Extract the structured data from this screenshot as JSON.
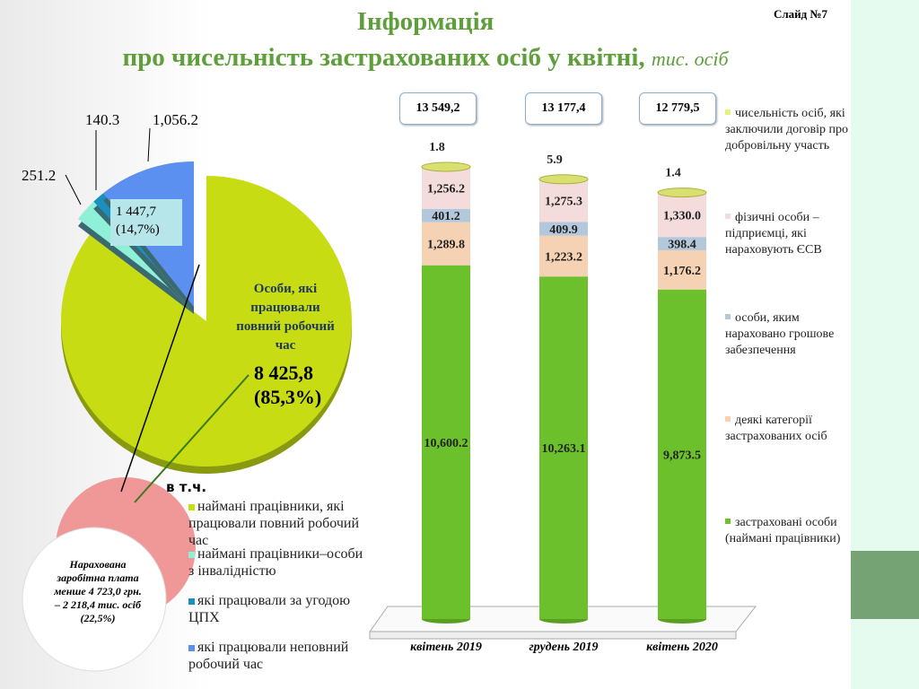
{
  "header": {
    "title": "Інформація",
    "subtitle": "про чисельність застрахованих осіб у квітні,",
    "unit": "тис. осіб",
    "slide": "Слайд №7"
  },
  "pie": {
    "main_label": "Особи, які працювали повний робочий час",
    "main_value": "8 425,8",
    "main_pct": "(85,3%)",
    "group_value": "1 447,7",
    "group_pct": "(14,7%)",
    "slices": [
      {
        "name": "найманi працівники, які працювали повний робочий час",
        "value": 8425.8,
        "color": "#c8dc14"
      },
      {
        "name": "наймані працівники–особи з інвалідністю",
        "value": 251.2,
        "label": "251.2",
        "color": "#8ff0d8"
      },
      {
        "name": "які працювали за угодою ЦПХ",
        "value": 140.3,
        "label": "140.3",
        "color": "#1a90c0"
      },
      {
        "name": "які працювали неповний робочий час",
        "value": 1056.2,
        "label": "1,056.2",
        "color": "#5b8ff0"
      }
    ],
    "in_that": "в т.ч.",
    "note": "Нарахована заробітна плата менше 4 723,0 грн. – 2 218,4 тис. осіб (22,5%)"
  },
  "chart_data": {
    "type": "bar",
    "stacked": true,
    "categories": [
      "квітень 2019",
      "грудень 2019",
      "квітень 2020"
    ],
    "totals": [
      "13 549,2",
      "13 177,4",
      "12 779,5"
    ],
    "series": [
      {
        "name": "застраховані особи (наймані працівники)",
        "values": [
          10600.2,
          10263.1,
          9873.5
        ],
        "labels": [
          "10,600.2",
          "10,263.1",
          "9,873.5"
        ],
        "color": "#6cc02c"
      },
      {
        "name": "деякі категорії застрахованих осіб",
        "values": [
          1289.8,
          1223.2,
          1176.2
        ],
        "labels": [
          "1,289.8",
          "1,223.2",
          "1,176.2"
        ],
        "color": "#f6d2b4"
      },
      {
        "name": "особи, яким нараховано грошове забезпечення",
        "values": [
          401.2,
          409.9,
          398.4
        ],
        "labels": [
          "401.2",
          "409.9",
          "398.4"
        ],
        "color": "#b4c8dc"
      },
      {
        "name": "фізичні особи – підприємці, які нараховують ЄСВ",
        "values": [
          1256.2,
          1275.3,
          1330.0
        ],
        "labels": [
          "1,256.2",
          "1,275.3",
          "1,330.0"
        ],
        "color": "#f4dcdc"
      },
      {
        "name": "чисельність осіб, які заключили договір про добровільну участь",
        "values": [
          1.8,
          5.9,
          1.4
        ],
        "labels": [
          "1.8",
          "5.9",
          "1.4"
        ],
        "color": "#e8f080"
      }
    ]
  }
}
